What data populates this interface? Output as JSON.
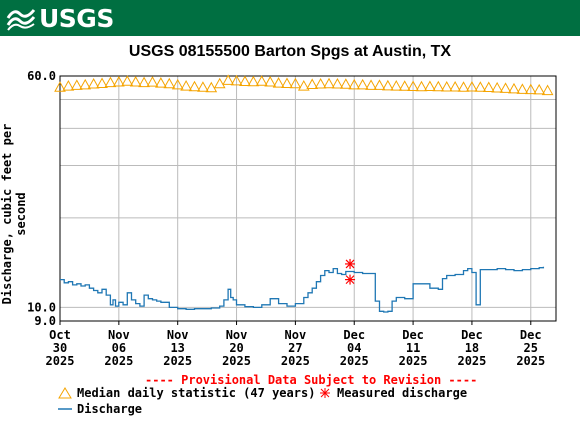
{
  "header": {
    "logo_text": "USGS"
  },
  "chart_data": {
    "type": "line",
    "title": "USGS 08155500 Barton Spgs at Austin, TX",
    "ylabel": "Discharge, cubic feet per second",
    "xlabel": "",
    "scale": "log",
    "ylim": [
      9.0,
      60.0
    ],
    "y_tick_labels": [
      "60.0",
      "10.0",
      "9.0"
    ],
    "x_ticks": [
      {
        "month": "Oct",
        "day": "30",
        "year": "2025"
      },
      {
        "month": "Nov",
        "day": "06",
        "year": "2025"
      },
      {
        "month": "Nov",
        "day": "13",
        "year": "2025"
      },
      {
        "month": "Nov",
        "day": "20",
        "year": "2025"
      },
      {
        "month": "Nov",
        "day": "27",
        "year": "2025"
      },
      {
        "month": "Dec",
        "day": "04",
        "year": "2025"
      },
      {
        "month": "Dec",
        "day": "11",
        "year": "2025"
      },
      {
        "month": "Dec",
        "day": "18",
        "year": "2025"
      },
      {
        "month": "Dec",
        "day": "25",
        "year": "2025"
      }
    ],
    "x_range_days": [
      0,
      59
    ],
    "grid": true,
    "series": [
      {
        "name": "Median daily statistic (47 years)",
        "color": "#f5a400",
        "marker": "triangle",
        "points": [
          [
            0,
            55
          ],
          [
            1,
            55.5
          ],
          [
            2,
            55.8
          ],
          [
            3,
            56
          ],
          [
            4,
            56.4
          ],
          [
            5,
            56.6
          ],
          [
            6,
            57
          ],
          [
            7,
            57.3
          ],
          [
            8,
            57.6
          ],
          [
            9,
            57.3
          ],
          [
            10,
            57
          ],
          [
            11,
            57.2
          ],
          [
            12,
            56.8
          ],
          [
            13,
            56.5
          ],
          [
            14,
            56
          ],
          [
            15,
            55.5
          ],
          [
            16,
            55.2
          ],
          [
            17,
            55
          ],
          [
            18,
            54.8
          ],
          [
            19,
            56.5
          ],
          [
            20,
            58
          ],
          [
            21,
            57.8
          ],
          [
            22,
            57.5
          ],
          [
            23,
            57.4
          ],
          [
            24,
            57.6
          ],
          [
            25,
            57.3
          ],
          [
            26,
            56.8
          ],
          [
            27,
            56.6
          ],
          [
            28,
            56.5
          ],
          [
            29,
            55.5
          ],
          [
            30,
            56.2
          ],
          [
            31,
            56.4
          ],
          [
            32,
            56.5
          ],
          [
            33,
            56.4
          ],
          [
            34,
            56.3
          ],
          [
            35,
            56
          ],
          [
            36,
            56
          ],
          [
            37,
            55.8
          ],
          [
            38,
            55.8
          ],
          [
            39,
            55.6
          ],
          [
            40,
            55.5
          ],
          [
            41,
            55.4
          ],
          [
            42,
            55.3
          ],
          [
            43,
            55.2
          ],
          [
            44,
            55.3
          ],
          [
            45,
            55.2
          ],
          [
            46,
            55.1
          ],
          [
            47,
            55.1
          ],
          [
            48,
            55
          ],
          [
            49,
            55.1
          ],
          [
            50,
            55
          ],
          [
            51,
            54.9
          ],
          [
            52,
            54.7
          ],
          [
            53,
            54.5
          ],
          [
            54,
            54.3
          ],
          [
            55,
            54.1
          ],
          [
            56,
            54
          ],
          [
            57,
            53.9
          ],
          [
            58,
            53.6
          ]
        ]
      },
      {
        "name": "Discharge",
        "color": "#1f77b4",
        "marker": "line",
        "points": [
          [
            0,
            12.4
          ],
          [
            0.5,
            12.1
          ],
          [
            1,
            12.2
          ],
          [
            1.5,
            11.9
          ],
          [
            2,
            12
          ],
          [
            2.5,
            11.8
          ],
          [
            3,
            11.9
          ],
          [
            3.5,
            11.6
          ],
          [
            4,
            11.4
          ],
          [
            4.5,
            11.2
          ],
          [
            5,
            11.5
          ],
          [
            5.5,
            11
          ],
          [
            6,
            10.2
          ],
          [
            6.3,
            10.6
          ],
          [
            6.6,
            10.1
          ],
          [
            7,
            10.4
          ],
          [
            7.5,
            10.2
          ],
          [
            8,
            11.2
          ],
          [
            8.5,
            10.6
          ],
          [
            9,
            10.3
          ],
          [
            9.5,
            10.1
          ],
          [
            10,
            11
          ],
          [
            10.5,
            10.7
          ],
          [
            11,
            10.6
          ],
          [
            11.5,
            10.5
          ],
          [
            12,
            10.4
          ],
          [
            13,
            10
          ],
          [
            14,
            9.9
          ],
          [
            15,
            9.85
          ],
          [
            16,
            9.9
          ],
          [
            17,
            9.9
          ],
          [
            18,
            9.95
          ],
          [
            19,
            10.1
          ],
          [
            19.5,
            10.6
          ],
          [
            20,
            11.5
          ],
          [
            20.3,
            10.8
          ],
          [
            20.6,
            10.6
          ],
          [
            21,
            10.2
          ],
          [
            22,
            10.05
          ],
          [
            23,
            10
          ],
          [
            24,
            10.2
          ],
          [
            25,
            10.7
          ],
          [
            26,
            10.3
          ],
          [
            27,
            10.1
          ],
          [
            28,
            10.3
          ],
          [
            29,
            10.8
          ],
          [
            29.5,
            11.2
          ],
          [
            30,
            11.6
          ],
          [
            30.5,
            12.2
          ],
          [
            31,
            12.8
          ],
          [
            31.5,
            13.3
          ],
          [
            32,
            13.1
          ],
          [
            32.5,
            13.5
          ],
          [
            33,
            13
          ],
          [
            33.5,
            12.9
          ],
          [
            34,
            13.2
          ],
          [
            35,
            13.1
          ],
          [
            36,
            13
          ],
          [
            37,
            13
          ],
          [
            37.5,
            10.5
          ],
          [
            38,
            9.7
          ],
          [
            38.5,
            9.65
          ],
          [
            39,
            9.7
          ],
          [
            39.5,
            10.5
          ],
          [
            40,
            10.8
          ],
          [
            41,
            10.7
          ],
          [
            42,
            12
          ],
          [
            43,
            12
          ],
          [
            44,
            11.6
          ],
          [
            45,
            11.5
          ],
          [
            45.5,
            12.5
          ],
          [
            46,
            12.8
          ],
          [
            47,
            12.9
          ],
          [
            48,
            13.3
          ],
          [
            48.5,
            13.5
          ],
          [
            49,
            13.1
          ],
          [
            49.5,
            10.2
          ],
          [
            50,
            13.4
          ],
          [
            51,
            13.4
          ],
          [
            52,
            13.5
          ],
          [
            53,
            13.4
          ],
          [
            54,
            13.3
          ],
          [
            55,
            13.4
          ],
          [
            56,
            13.5
          ],
          [
            57,
            13.6
          ],
          [
            57.5,
            13.7
          ]
        ]
      },
      {
        "name": "Measured discharge",
        "color": "#ff0000",
        "marker": "star",
        "points": [
          [
            34.5,
            14.0
          ],
          [
            34.5,
            12.4
          ]
        ]
      }
    ],
    "legend": {
      "provisional_note": "---- Provisional Data Subject to Revision ----",
      "entries": [
        {
          "label": "Median daily statistic (47 years)"
        },
        {
          "label": "Measured discharge"
        },
        {
          "label": "Discharge"
        }
      ]
    }
  }
}
